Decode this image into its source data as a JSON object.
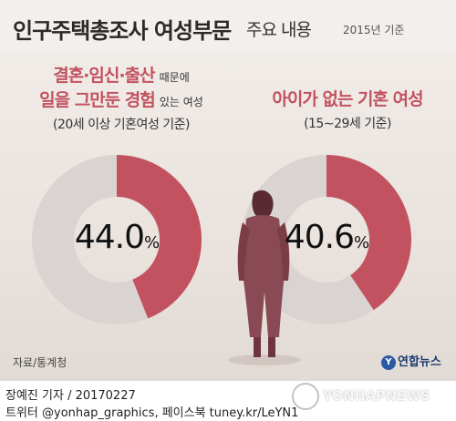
{
  "header": {
    "title": "인구주택총조사 여성부문",
    "subtitle": "주요 내용",
    "year_note": "2015년 기준"
  },
  "chart_data": [
    {
      "type": "pie",
      "style": "donut",
      "label_line1_highlight": "결혼·임신·출산",
      "label_line1_small": "때문에",
      "label_line2_highlight": "일을 그만둔 경험",
      "label_line2_small": "있는 여성",
      "criteria": "(20세 이상 기혼여성 기준)",
      "value": 44.0,
      "value_text": "44.0",
      "unit": "%",
      "highlight_color": "#c2525f",
      "rest_color": "#d9d4d1"
    },
    {
      "type": "pie",
      "style": "donut",
      "label_line1_highlight": "아이가 없는 기혼 여성",
      "criteria": "(15∼29세 기준)",
      "value": 40.6,
      "value_text": "40.6",
      "unit": "%",
      "highlight_color": "#c2525f",
      "rest_color": "#d9d4d1"
    }
  ],
  "footer": {
    "source": "자료/통계청",
    "agency_logo_text": "연합뉴스",
    "credit_line1": "장예진 기자 / 20170227",
    "credit_line2": "트위터 @yonhap_graphics, 페이스북 tuney.kr/LeYN1",
    "watermark": "YONHAPNEWS"
  }
}
